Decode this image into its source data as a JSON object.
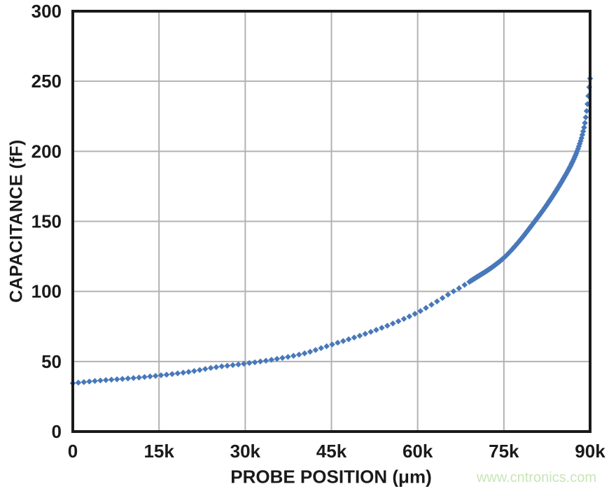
{
  "watermark": {
    "text": "www.cntronics.com",
    "color": "#c8e5b8"
  },
  "chart_data": {
    "type": "scatter",
    "title": "",
    "xlabel": "PROBE POSITION (μm)",
    "ylabel": "CAPACITANCE (fF)",
    "xlim": [
      0,
      90000
    ],
    "ylim": [
      0,
      300
    ],
    "grid": true,
    "legend": "none",
    "x_ticks": [
      {
        "value": 0,
        "label": "0"
      },
      {
        "value": 15000,
        "label": "15k"
      },
      {
        "value": 30000,
        "label": "30k"
      },
      {
        "value": 45000,
        "label": "45k"
      },
      {
        "value": 60000,
        "label": "60k"
      },
      {
        "value": 75000,
        "label": "75k"
      },
      {
        "value": 90000,
        "label": "90k"
      }
    ],
    "y_ticks": [
      {
        "value": 0,
        "label": "0"
      },
      {
        "value": 50,
        "label": "50"
      },
      {
        "value": 100,
        "label": "100"
      },
      {
        "value": 150,
        "label": "150"
      },
      {
        "value": 200,
        "label": "200"
      },
      {
        "value": 250,
        "label": "250"
      },
      {
        "value": 300,
        "label": "300"
      }
    ],
    "series": [
      {
        "name": "capacitance-vs-probe-position",
        "marker": "diamond",
        "color": "#4878ba",
        "points": [
          [
            0,
            34.5
          ],
          [
            5000,
            36.5
          ],
          [
            10000,
            38
          ],
          [
            15000,
            40
          ],
          [
            20000,
            42.5
          ],
          [
            25000,
            46
          ],
          [
            30000,
            48.5
          ],
          [
            35000,
            51.5
          ],
          [
            40000,
            55.5
          ],
          [
            45000,
            62
          ],
          [
            50000,
            68.5
          ],
          [
            55000,
            76
          ],
          [
            60000,
            85
          ],
          [
            63000,
            92
          ],
          [
            66000,
            99.5
          ],
          [
            67500,
            103
          ],
          [
            70000,
            109.5
          ],
          [
            72500,
            116
          ],
          [
            75000,
            124
          ],
          [
            77500,
            135
          ],
          [
            80000,
            148
          ],
          [
            82500,
            162
          ],
          [
            85000,
            178
          ],
          [
            87000,
            193
          ],
          [
            88000,
            203
          ],
          [
            89000,
            218
          ],
          [
            89500,
            232
          ],
          [
            90000,
            252
          ]
        ],
        "marker_sampling": [
          {
            "start": 0,
            "end": 68160,
            "step": 960
          },
          {
            "start": 69000,
            "end": 90000,
            "step": 150
          }
        ]
      }
    ],
    "styles": {
      "grid_color": "#b2b2b2",
      "frame_color": "#1a1a1a",
      "text_color": "#1a1a1a",
      "tick_font_size": 26
    }
  }
}
